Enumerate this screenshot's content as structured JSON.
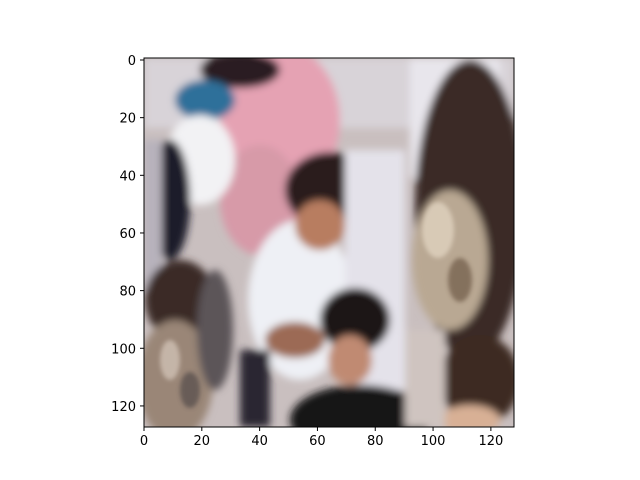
{
  "image": {
    "description_tag": "crowd-photo",
    "x_ticks": [
      "0",
      "20",
      "40",
      "60",
      "80",
      "100",
      "120"
    ],
    "y_ticks": [
      "0",
      "20",
      "40",
      "60",
      "80",
      "100",
      "120"
    ],
    "x_range": [
      0,
      128
    ],
    "y_range": [
      0,
      128
    ],
    "axis_color": "#000000"
  }
}
